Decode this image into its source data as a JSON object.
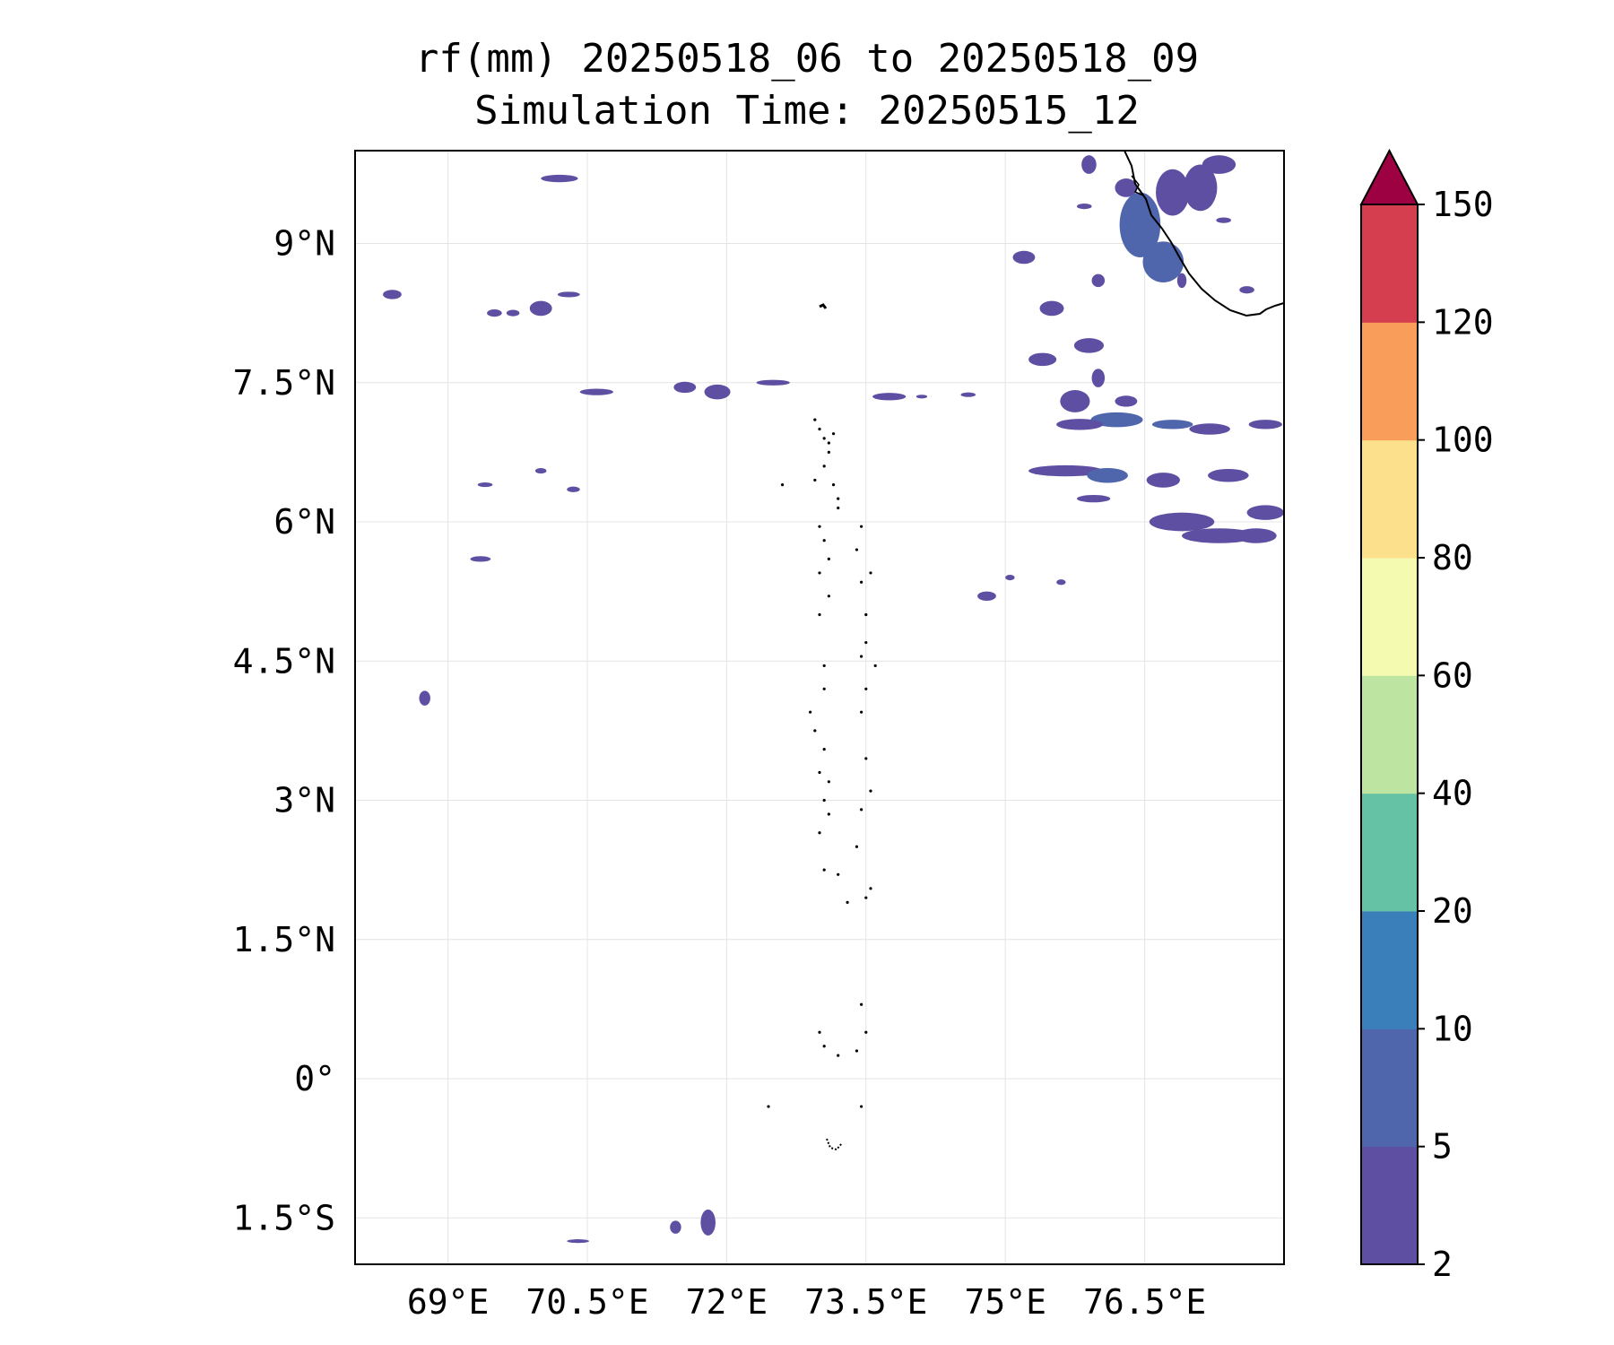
{
  "title": {
    "line1": "rf(mm) 20250518_06 to 20250518_09",
    "line2": "Simulation Time: 20250515_12"
  },
  "map": {
    "lon_range": [
      68.0,
      78.0
    ],
    "lat_range": [
      -2.0,
      10.0
    ],
    "x_ticks": [
      {
        "value": 69.0,
        "label": "69°E"
      },
      {
        "value": 70.5,
        "label": "70.5°E"
      },
      {
        "value": 72.0,
        "label": "72°E"
      },
      {
        "value": 73.5,
        "label": "73.5°E"
      },
      {
        "value": 75.0,
        "label": "75°E"
      },
      {
        "value": 76.5,
        "label": "76.5°E"
      }
    ],
    "y_ticks": [
      {
        "value": 9.0,
        "label": "9°N"
      },
      {
        "value": 7.5,
        "label": "7.5°N"
      },
      {
        "value": 6.0,
        "label": "6°N"
      },
      {
        "value": 4.5,
        "label": "4.5°N"
      },
      {
        "value": 3.0,
        "label": "3°N"
      },
      {
        "value": 1.5,
        "label": "1.5°N"
      },
      {
        "value": 0.0,
        "label": "0°"
      },
      {
        "value": -1.5,
        "label": "1.5°S"
      }
    ],
    "gridlines": true,
    "coastline_color": "#000000"
  },
  "colorbar": {
    "levels": [
      "2",
      "5",
      "10",
      "20",
      "40",
      "60",
      "80",
      "100",
      "120",
      "150"
    ],
    "colors": [
      "#5e4fa2",
      "#4f66ad",
      "#3a7fb9",
      "#66c2a5",
      "#bde4a0",
      "#f4faaf",
      "#fde08b",
      "#f99e5a",
      "#d53e4f"
    ],
    "extend_color": "#9e0142",
    "extend": "max"
  },
  "rain_patches": [
    {
      "lon": 70.2,
      "lat": 9.7,
      "rlon": 0.2,
      "rlat": 0.04,
      "level": 0
    },
    {
      "lon": 68.4,
      "lat": 8.45,
      "rlon": 0.1,
      "rlat": 0.05,
      "level": 0
    },
    {
      "lon": 69.5,
      "lat": 8.25,
      "rlon": 0.08,
      "rlat": 0.04,
      "level": 0
    },
    {
      "lon": 69.7,
      "lat": 8.25,
      "rlon": 0.07,
      "rlat": 0.035,
      "level": 0
    },
    {
      "lon": 70.0,
      "lat": 8.3,
      "rlon": 0.12,
      "rlat": 0.08,
      "level": 0
    },
    {
      "lon": 70.3,
      "lat": 8.45,
      "rlon": 0.12,
      "rlat": 0.03,
      "level": 0
    },
    {
      "lon": 70.6,
      "lat": 7.4,
      "rlon": 0.18,
      "rlat": 0.035,
      "level": 0
    },
    {
      "lon": 71.55,
      "lat": 7.45,
      "rlon": 0.12,
      "rlat": 0.06,
      "level": 0
    },
    {
      "lon": 71.9,
      "lat": 7.4,
      "rlon": 0.14,
      "rlat": 0.08,
      "level": 0
    },
    {
      "lon": 72.5,
      "lat": 7.5,
      "rlon": 0.18,
      "rlat": 0.03,
      "level": 0
    },
    {
      "lon": 73.75,
      "lat": 7.35,
      "rlon": 0.18,
      "rlat": 0.04,
      "level": 0
    },
    {
      "lon": 74.1,
      "lat": 7.35,
      "rlon": 0.06,
      "rlat": 0.02,
      "level": 0
    },
    {
      "lon": 74.6,
      "lat": 7.37,
      "rlon": 0.08,
      "rlat": 0.025,
      "level": 0
    },
    {
      "lon": 69.4,
      "lat": 6.4,
      "rlon": 0.08,
      "rlat": 0.025,
      "level": 0
    },
    {
      "lon": 70.0,
      "lat": 6.55,
      "rlon": 0.06,
      "rlat": 0.03,
      "level": 0
    },
    {
      "lon": 70.35,
      "lat": 6.35,
      "rlon": 0.07,
      "rlat": 0.03,
      "level": 0
    },
    {
      "lon": 69.35,
      "lat": 5.6,
      "rlon": 0.11,
      "rlat": 0.03,
      "level": 0
    },
    {
      "lon": 68.75,
      "lat": 4.1,
      "rlon": 0.06,
      "rlat": 0.08,
      "level": 0
    },
    {
      "lon": 74.8,
      "lat": 5.2,
      "rlon": 0.1,
      "rlat": 0.05,
      "level": 0
    },
    {
      "lon": 75.05,
      "lat": 5.4,
      "rlon": 0.05,
      "rlat": 0.03,
      "level": 0
    },
    {
      "lon": 75.6,
      "lat": 5.35,
      "rlon": 0.05,
      "rlat": 0.03,
      "level": 0
    },
    {
      "lon": 71.8,
      "lat": -1.55,
      "rlon": 0.08,
      "rlat": 0.14,
      "level": 0
    },
    {
      "lon": 71.45,
      "lat": -1.6,
      "rlon": 0.06,
      "rlat": 0.07,
      "level": 0
    },
    {
      "lon": 70.4,
      "lat": -1.75,
      "rlon": 0.12,
      "rlat": 0.02,
      "level": 0
    },
    {
      "lon": 75.2,
      "lat": 8.85,
      "rlon": 0.12,
      "rlat": 0.07,
      "level": 0
    },
    {
      "lon": 75.5,
      "lat": 8.3,
      "rlon": 0.13,
      "rlat": 0.08,
      "level": 0
    },
    {
      "lon": 76.0,
      "lat": 8.6,
      "rlon": 0.07,
      "rlat": 0.07,
      "level": 0
    },
    {
      "lon": 75.9,
      "lat": 7.9,
      "rlon": 0.16,
      "rlat": 0.08,
      "level": 0
    },
    {
      "lon": 75.4,
      "lat": 7.75,
      "rlon": 0.15,
      "rlat": 0.07,
      "level": 0
    },
    {
      "lon": 76.0,
      "lat": 7.55,
      "rlon": 0.07,
      "rlat": 0.1,
      "level": 0
    },
    {
      "lon": 76.3,
      "lat": 7.3,
      "rlon": 0.12,
      "rlat": 0.06,
      "level": 0
    },
    {
      "lon": 75.75,
      "lat": 7.3,
      "rlon": 0.16,
      "rlat": 0.12,
      "level": 0
    },
    {
      "lon": 76.2,
      "lat": 7.1,
      "rlon": 0.28,
      "rlat": 0.08,
      "level": 1
    },
    {
      "lon": 75.8,
      "lat": 7.05,
      "rlon": 0.25,
      "rlat": 0.06,
      "level": 0
    },
    {
      "lon": 77.2,
      "lat": 7.0,
      "rlon": 0.22,
      "rlat": 0.06,
      "level": 0
    },
    {
      "lon": 76.8,
      "lat": 7.05,
      "rlon": 0.22,
      "rlat": 0.05,
      "level": 1
    },
    {
      "lon": 77.8,
      "lat": 7.05,
      "rlon": 0.18,
      "rlat": 0.05,
      "level": 0
    },
    {
      "lon": 75.65,
      "lat": 6.55,
      "rlon": 0.4,
      "rlat": 0.06,
      "level": 0
    },
    {
      "lon": 76.1,
      "lat": 6.5,
      "rlon": 0.22,
      "rlat": 0.08,
      "level": 1
    },
    {
      "lon": 76.7,
      "lat": 6.45,
      "rlon": 0.18,
      "rlat": 0.08,
      "level": 0
    },
    {
      "lon": 77.4,
      "lat": 6.5,
      "rlon": 0.22,
      "rlat": 0.07,
      "level": 0
    },
    {
      "lon": 75.95,
      "lat": 6.25,
      "rlon": 0.18,
      "rlat": 0.04,
      "level": 0
    },
    {
      "lon": 76.9,
      "lat": 6.0,
      "rlon": 0.35,
      "rlat": 0.1,
      "level": 0
    },
    {
      "lon": 77.3,
      "lat": 5.85,
      "rlon": 0.4,
      "rlat": 0.08,
      "level": 0
    },
    {
      "lon": 77.7,
      "lat": 5.85,
      "rlon": 0.22,
      "rlat": 0.08,
      "level": 0
    },
    {
      "lon": 77.8,
      "lat": 6.1,
      "rlon": 0.2,
      "rlat": 0.08,
      "level": 0
    },
    {
      "lon": 76.3,
      "lat": 9.6,
      "rlon": 0.12,
      "rlat": 0.1,
      "level": 0
    },
    {
      "lon": 76.45,
      "lat": 9.2,
      "rlon": 0.22,
      "rlat": 0.35,
      "level": 1
    },
    {
      "lon": 76.7,
      "lat": 8.8,
      "rlon": 0.22,
      "rlat": 0.22,
      "level": 1
    },
    {
      "lon": 76.8,
      "lat": 9.55,
      "rlon": 0.18,
      "rlat": 0.25,
      "level": 0
    },
    {
      "lon": 77.1,
      "lat": 9.6,
      "rlon": 0.18,
      "rlat": 0.25,
      "level": 0
    },
    {
      "lon": 77.3,
      "lat": 9.85,
      "rlon": 0.18,
      "rlat": 0.1,
      "level": 0
    },
    {
      "lon": 76.9,
      "lat": 8.6,
      "rlon": 0.05,
      "rlat": 0.08,
      "level": 0
    },
    {
      "lon": 77.6,
      "lat": 8.5,
      "rlon": 0.08,
      "rlat": 0.04,
      "level": 0
    },
    {
      "lon": 77.35,
      "lat": 9.25,
      "rlon": 0.08,
      "rlat": 0.03,
      "level": 0
    },
    {
      "lon": 75.85,
      "lat": 9.4,
      "rlon": 0.08,
      "rlat": 0.03,
      "level": 0
    },
    {
      "lon": 75.9,
      "lat": 9.85,
      "rlon": 0.08,
      "rlat": 0.1,
      "level": 0
    }
  ]
}
